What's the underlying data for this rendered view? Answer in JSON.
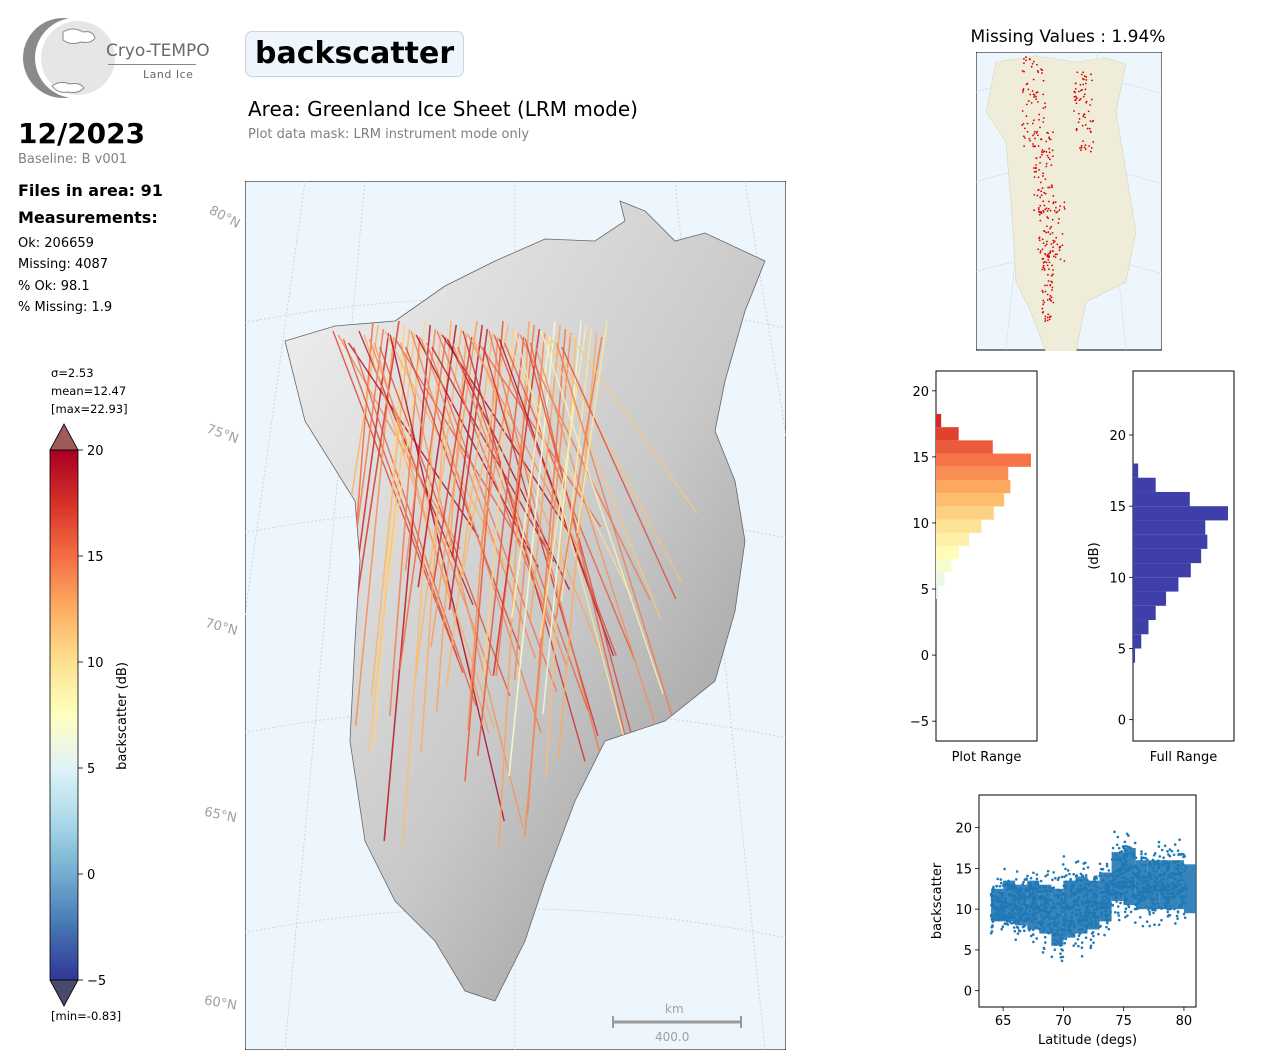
{
  "logo": {
    "name": "Cryo-TEMPO",
    "subtitle": "Land Ice"
  },
  "header": {
    "parameter": "backscatter",
    "area_title": "Area: Greenland Ice Sheet (LRM mode)",
    "mask_note": "Plot data mask: LRM instrument mode only"
  },
  "summary": {
    "month": "12/2023",
    "baseline": "Baseline: B v001",
    "files": "Files in area: 91",
    "measurements_label": "Measurements:",
    "ok": "Ok: 206659",
    "missing": "Missing: 4087",
    "pct_ok": "% Ok: 98.1",
    "pct_missing": "% Missing: 1.9"
  },
  "colorbar": {
    "sigma": "σ=2.53",
    "mean": "mean=12.47",
    "max": "[max=22.93]",
    "min": "[min=-0.83]",
    "label": "backscatter (dB)",
    "range": [
      -5,
      20
    ],
    "ticks": [
      "20",
      "15",
      "10",
      "5",
      "0",
      "−5"
    ],
    "colors": [
      "#313695",
      "#4575b4",
      "#74add1",
      "#abd9e9",
      "#e0f3f8",
      "#ffffbf",
      "#fee090",
      "#fdae61",
      "#f46d43",
      "#d73027",
      "#a50026"
    ]
  },
  "map": {
    "lat_labels": [
      "80°N",
      "75°N",
      "70°N",
      "65°N",
      "60°N"
    ],
    "scale_unit": "km",
    "scale_value": "400.0"
  },
  "missing": {
    "title": "Missing Values : 1.94%"
  },
  "chart_data": [
    {
      "type": "area",
      "title": "",
      "xlabel": "Plot Range",
      "ylabel": "",
      "orientation": "horizontal",
      "ylim": [
        -6.5,
        21.5
      ],
      "yticks": [
        "20",
        "15",
        "10",
        "5",
        "0",
        "−5"
      ],
      "bins": [
        4.75,
        5.75,
        6.75,
        7.75,
        8.75,
        9.75,
        10.75,
        11.75,
        12.75,
        13.75,
        14.75,
        15.75,
        16.75,
        17.75
      ],
      "values": [
        2,
        8,
        15,
        22,
        32,
        44,
        56,
        66,
        72,
        70,
        92,
        55,
        22,
        5
      ]
    },
    {
      "type": "area",
      "title": "",
      "xlabel": "Full Range",
      "ylabel": "(dB)",
      "orientation": "horizontal",
      "color": "#3f3faa",
      "ylim": [
        -1.5,
        24.5
      ],
      "yticks": [
        "20",
        "15",
        "10",
        "5",
        "0"
      ],
      "bins": [
        4.5,
        5.5,
        6.5,
        7.5,
        8.5,
        9.5,
        10.5,
        11.5,
        12.5,
        13.5,
        14.5,
        15.5,
        16.5,
        17.5
      ],
      "values": [
        2,
        8,
        15,
        22,
        32,
        44,
        56,
        66,
        72,
        70,
        92,
        55,
        22,
        5
      ]
    },
    {
      "type": "scatter",
      "title": "",
      "xlabel": "Latitude (degs)",
      "ylabel": "backscatter",
      "color": "#1f77b4",
      "xlim": [
        63,
        81
      ],
      "ylim": [
        -2,
        24
      ],
      "xticks": [
        "65",
        "70",
        "75",
        "80"
      ],
      "yticks": [
        "20",
        "15",
        "10",
        "5",
        "0"
      ],
      "lat_bands": [
        64,
        65,
        66,
        67,
        68,
        69,
        70,
        71,
        72,
        73,
        74,
        75,
        76,
        77,
        78,
        79,
        80
      ],
      "mean_values": [
        10.5,
        11,
        10.5,
        10.5,
        10,
        9,
        10,
        10.5,
        10.5,
        11.5,
        14,
        14,
        13,
        13,
        13,
        13,
        12.5
      ],
      "spread": [
        2,
        2.5,
        2.5,
        3,
        3,
        3.5,
        3.5,
        3.5,
        3,
        3,
        3,
        3.5,
        3,
        3,
        3,
        3,
        3
      ]
    }
  ]
}
